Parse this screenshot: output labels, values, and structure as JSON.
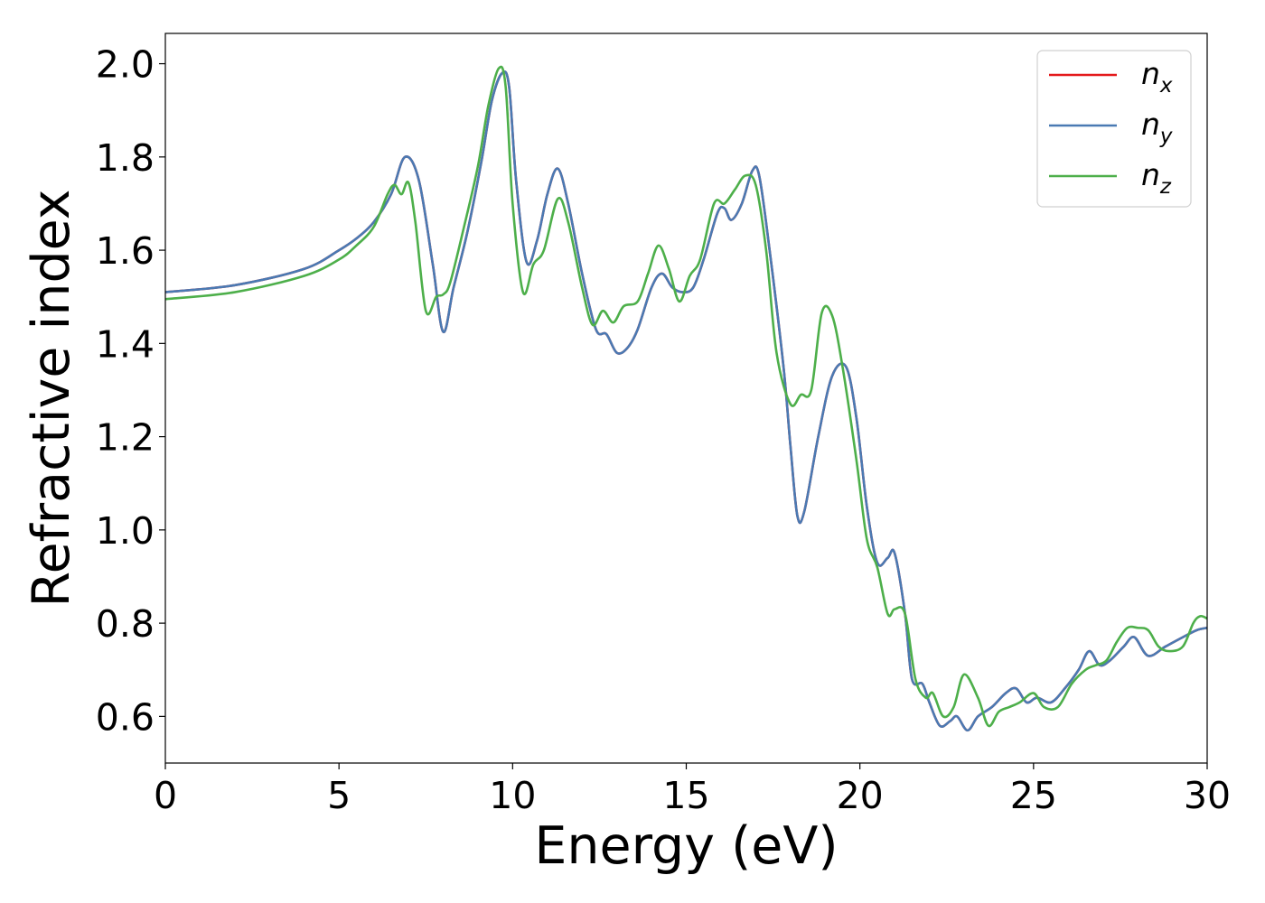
{
  "chart_data": {
    "type": "line",
    "title": "",
    "xlabel": "Energy (eV)",
    "ylabel": "Refractive index",
    "xlim": [
      0,
      30
    ],
    "ylim": [
      0.5,
      2.065
    ],
    "xticks": [
      0,
      5,
      10,
      15,
      20,
      25,
      30
    ],
    "yticks": [
      0.6,
      0.8,
      1.0,
      1.2,
      1.4,
      1.6,
      1.8,
      2.0
    ],
    "xtick_labels": [
      "0",
      "5",
      "10",
      "15",
      "20",
      "25",
      "30"
    ],
    "ytick_labels": [
      "0.6",
      "0.8",
      "1.0",
      "1.2",
      "1.4",
      "1.6",
      "1.8",
      "2.0"
    ],
    "grid": false,
    "legend_position": "top-right",
    "series": [
      {
        "name": "n_x",
        "legend_base": "n",
        "legend_sub": "x",
        "color": "#e41a1c",
        "x": [
          0,
          2,
          4,
          5,
          5.5,
          6,
          6.5,
          6.9,
          7.3,
          7.7,
          8.0,
          8.3,
          8.7,
          9.1,
          9.4,
          9.7,
          9.9,
          10.1,
          10.4,
          10.7,
          11.0,
          11.3,
          11.6,
          12.0,
          12.4,
          12.7,
          13.0,
          13.3,
          13.6,
          14.0,
          14.3,
          14.6,
          14.9,
          15.2,
          15.5,
          15.9,
          16.1,
          16.3,
          16.6,
          16.9,
          17.1,
          17.4,
          17.8,
          18.0,
          18.2,
          18.4,
          18.8,
          19.2,
          19.6,
          19.9,
          20.2,
          20.5,
          20.8,
          21.0,
          21.3,
          21.5,
          21.8,
          22.0,
          22.3,
          22.6,
          22.8,
          23.1,
          23.4,
          23.8,
          24.2,
          24.5,
          24.8,
          25.1,
          25.5,
          25.9,
          26.3,
          26.6,
          26.9,
          27.2,
          27.6,
          27.9,
          28.3,
          28.8,
          29.3,
          29.7,
          30.0
        ],
        "y": [
          1.51,
          1.525,
          1.56,
          1.6,
          1.625,
          1.66,
          1.72,
          1.8,
          1.75,
          1.57,
          1.425,
          1.52,
          1.64,
          1.79,
          1.92,
          1.98,
          1.95,
          1.75,
          1.575,
          1.62,
          1.72,
          1.775,
          1.7,
          1.55,
          1.43,
          1.42,
          1.38,
          1.39,
          1.43,
          1.52,
          1.55,
          1.52,
          1.51,
          1.52,
          1.58,
          1.68,
          1.69,
          1.665,
          1.7,
          1.77,
          1.76,
          1.6,
          1.35,
          1.18,
          1.03,
          1.04,
          1.2,
          1.33,
          1.35,
          1.24,
          1.05,
          0.93,
          0.94,
          0.95,
          0.82,
          0.68,
          0.67,
          0.63,
          0.58,
          0.59,
          0.6,
          0.57,
          0.6,
          0.62,
          0.65,
          0.66,
          0.63,
          0.64,
          0.63,
          0.66,
          0.7,
          0.74,
          0.71,
          0.72,
          0.75,
          0.77,
          0.73,
          0.75,
          0.77,
          0.785,
          0.79
        ]
      },
      {
        "name": "n_y",
        "legend_base": "n",
        "legend_sub": "y",
        "color": "#4a7ab3",
        "x": [
          0,
          2,
          4,
          5,
          5.5,
          6,
          6.5,
          6.9,
          7.3,
          7.7,
          8.0,
          8.3,
          8.7,
          9.1,
          9.4,
          9.7,
          9.9,
          10.1,
          10.4,
          10.7,
          11.0,
          11.3,
          11.6,
          12.0,
          12.4,
          12.7,
          13.0,
          13.3,
          13.6,
          14.0,
          14.3,
          14.6,
          14.9,
          15.2,
          15.5,
          15.9,
          16.1,
          16.3,
          16.6,
          16.9,
          17.1,
          17.4,
          17.8,
          18.0,
          18.2,
          18.4,
          18.8,
          19.2,
          19.6,
          19.9,
          20.2,
          20.5,
          20.8,
          21.0,
          21.3,
          21.5,
          21.8,
          22.0,
          22.3,
          22.6,
          22.8,
          23.1,
          23.4,
          23.8,
          24.2,
          24.5,
          24.8,
          25.1,
          25.5,
          25.9,
          26.3,
          26.6,
          26.9,
          27.2,
          27.6,
          27.9,
          28.3,
          28.8,
          29.3,
          29.7,
          30.0
        ],
        "y": [
          1.51,
          1.525,
          1.56,
          1.6,
          1.625,
          1.66,
          1.72,
          1.8,
          1.75,
          1.57,
          1.425,
          1.52,
          1.64,
          1.79,
          1.92,
          1.98,
          1.95,
          1.75,
          1.575,
          1.62,
          1.72,
          1.775,
          1.7,
          1.55,
          1.43,
          1.42,
          1.38,
          1.39,
          1.43,
          1.52,
          1.55,
          1.52,
          1.51,
          1.52,
          1.58,
          1.68,
          1.69,
          1.665,
          1.7,
          1.77,
          1.76,
          1.6,
          1.35,
          1.18,
          1.03,
          1.04,
          1.2,
          1.33,
          1.35,
          1.24,
          1.05,
          0.93,
          0.94,
          0.95,
          0.82,
          0.68,
          0.67,
          0.63,
          0.58,
          0.59,
          0.6,
          0.57,
          0.6,
          0.62,
          0.65,
          0.66,
          0.63,
          0.64,
          0.63,
          0.66,
          0.7,
          0.74,
          0.71,
          0.72,
          0.75,
          0.77,
          0.73,
          0.75,
          0.77,
          0.785,
          0.79
        ]
      },
      {
        "name": "n_z",
        "legend_base": "n",
        "legend_sub": "z",
        "color": "#4daf4a",
        "x": [
          0,
          2,
          4,
          5,
          5.5,
          6,
          6.4,
          6.6,
          6.8,
          7.0,
          7.2,
          7.5,
          7.8,
          8.0,
          8.2,
          8.6,
          9.0,
          9.3,
          9.6,
          9.8,
          10.0,
          10.3,
          10.6,
          10.9,
          11.3,
          11.6,
          12.0,
          12.3,
          12.6,
          12.9,
          13.2,
          13.6,
          13.9,
          14.2,
          14.5,
          14.8,
          15.1,
          15.4,
          15.8,
          16.1,
          16.4,
          16.7,
          17.0,
          17.3,
          17.6,
          18.0,
          18.3,
          18.6,
          18.9,
          19.2,
          19.5,
          19.9,
          20.2,
          20.5,
          20.8,
          21.0,
          21.3,
          21.6,
          21.9,
          22.1,
          22.4,
          22.7,
          23.0,
          23.4,
          23.7,
          24.0,
          24.3,
          24.6,
          25.0,
          25.3,
          25.7,
          26.1,
          26.5,
          26.8,
          27.1,
          27.4,
          27.7,
          28.0,
          28.3,
          28.6,
          28.9,
          29.3,
          29.6,
          29.8,
          30.0
        ],
        "y": [
          1.495,
          1.51,
          1.545,
          1.58,
          1.61,
          1.65,
          1.72,
          1.74,
          1.72,
          1.745,
          1.66,
          1.47,
          1.5,
          1.505,
          1.53,
          1.65,
          1.78,
          1.91,
          1.99,
          1.95,
          1.7,
          1.51,
          1.57,
          1.6,
          1.71,
          1.66,
          1.52,
          1.44,
          1.47,
          1.445,
          1.48,
          1.49,
          1.55,
          1.61,
          1.56,
          1.49,
          1.545,
          1.58,
          1.7,
          1.7,
          1.73,
          1.76,
          1.74,
          1.6,
          1.38,
          1.27,
          1.29,
          1.3,
          1.465,
          1.46,
          1.35,
          1.15,
          0.98,
          0.92,
          0.82,
          0.83,
          0.82,
          0.68,
          0.64,
          0.65,
          0.6,
          0.62,
          0.69,
          0.64,
          0.58,
          0.61,
          0.62,
          0.63,
          0.65,
          0.62,
          0.62,
          0.67,
          0.7,
          0.71,
          0.72,
          0.76,
          0.79,
          0.79,
          0.785,
          0.75,
          0.74,
          0.75,
          0.8,
          0.815,
          0.81
        ]
      }
    ]
  }
}
